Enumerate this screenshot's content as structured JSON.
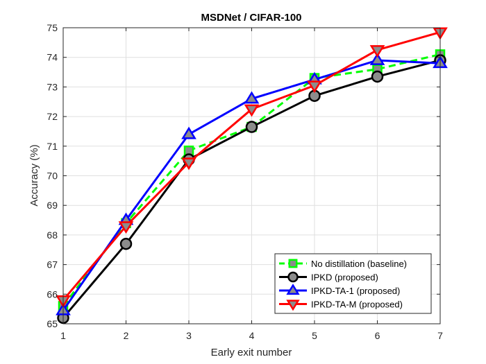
{
  "chart_data": {
    "type": "line",
    "title": "MSDNet / CIFAR-100",
    "xlabel": "Early exit number",
    "ylabel": "Accuracy (%)",
    "x": [
      1,
      2,
      3,
      4,
      5,
      6,
      7
    ],
    "xlim": [
      1,
      7
    ],
    "ylim": [
      65,
      75
    ],
    "xticks": [
      "1",
      "2",
      "3",
      "4",
      "5",
      "6",
      "7"
    ],
    "yticks": [
      "65",
      "66",
      "67",
      "68",
      "69",
      "70",
      "71",
      "72",
      "73",
      "74",
      "75"
    ],
    "grid": true,
    "legend_position": "bottom-right",
    "series": [
      {
        "name": "No distillation (baseline)",
        "values": [
          65.6,
          68.4,
          70.85,
          71.65,
          73.3,
          73.6,
          74.1
        ],
        "line_color": "#00ff00",
        "marker_fill": "#8c8c8c",
        "marker_edge": "#00ff00",
        "line_style": "dashed",
        "marker": "square"
      },
      {
        "name": "IPKD (proposed)",
        "values": [
          65.2,
          67.7,
          70.55,
          71.65,
          72.7,
          73.35,
          73.9
        ],
        "line_color": "#000000",
        "marker_fill": "#8c8c8c",
        "marker_edge": "#000000",
        "line_style": "solid",
        "marker": "circle"
      },
      {
        "name": "IPKD-TA-1 (proposed)",
        "values": [
          65.45,
          68.5,
          71.4,
          72.6,
          73.25,
          73.9,
          73.8
        ],
        "line_color": "#0000ff",
        "marker_fill": "#8c8c8c",
        "marker_edge": "#0000ff",
        "line_style": "solid",
        "marker": "triangle-up"
      },
      {
        "name": "IPKD-TA-M (proposed)",
        "values": [
          65.8,
          68.3,
          70.45,
          72.25,
          73.05,
          74.25,
          74.85
        ],
        "line_color": "#ff0000",
        "marker_fill": "#8c8c8c",
        "marker_edge": "#ff0000",
        "line_style": "solid",
        "marker": "triangle-down"
      }
    ]
  }
}
